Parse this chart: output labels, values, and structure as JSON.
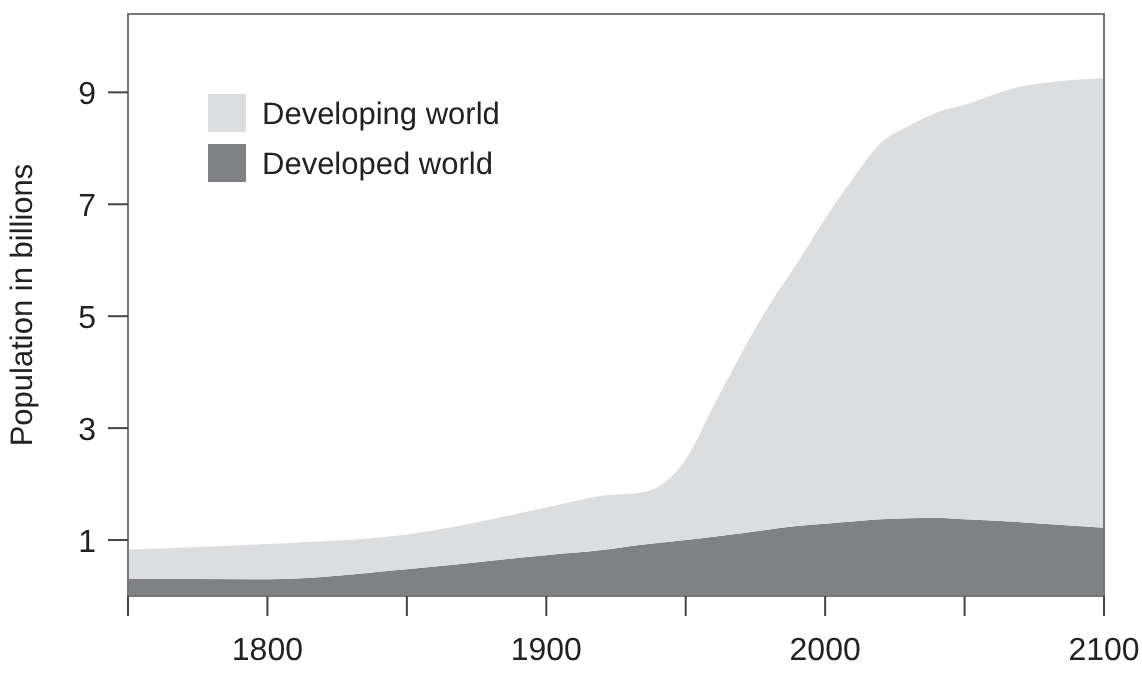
{
  "chart_data": {
    "type": "area",
    "stacked": true,
    "ylabel": "Population in billions",
    "x": [
      1750,
      1800,
      1850,
      1900,
      1920,
      1935,
      1950,
      1960,
      1970,
      1980,
      1990,
      2000,
      2010,
      2020,
      2030,
      2040,
      2050,
      2070,
      2100
    ],
    "series": [
      {
        "name": "Developed world",
        "color": "#808184",
        "values": [
          0.31,
          0.3,
          0.48,
          0.73,
          0.82,
          0.92,
          1.0,
          1.06,
          1.12,
          1.19,
          1.25,
          1.29,
          1.33,
          1.37,
          1.39,
          1.4,
          1.37,
          1.32,
          1.22
        ]
      },
      {
        "name": "Developing world",
        "color": "#dcdddf",
        "values": [
          0.52,
          0.63,
          0.62,
          0.85,
          0.97,
          0.94,
          1.44,
          2.34,
          3.22,
          4.01,
          4.7,
          5.45,
          6.13,
          6.73,
          7.01,
          7.24,
          7.41,
          7.78,
          8.03
        ]
      }
    ],
    "xlim": [
      1750,
      2100
    ],
    "xticks": [
      {
        "value": 1750,
        "label": null
      },
      1800,
      {
        "value": 1850,
        "label": null
      },
      1900,
      {
        "value": 1950,
        "label": null
      },
      2000,
      {
        "value": 2050,
        "label": null
      },
      2100
    ],
    "ylim": [
      0,
      10.4
    ],
    "yticks": [
      1,
      3,
      5,
      7,
      9
    ],
    "legend": "top left",
    "grid": false
  }
}
